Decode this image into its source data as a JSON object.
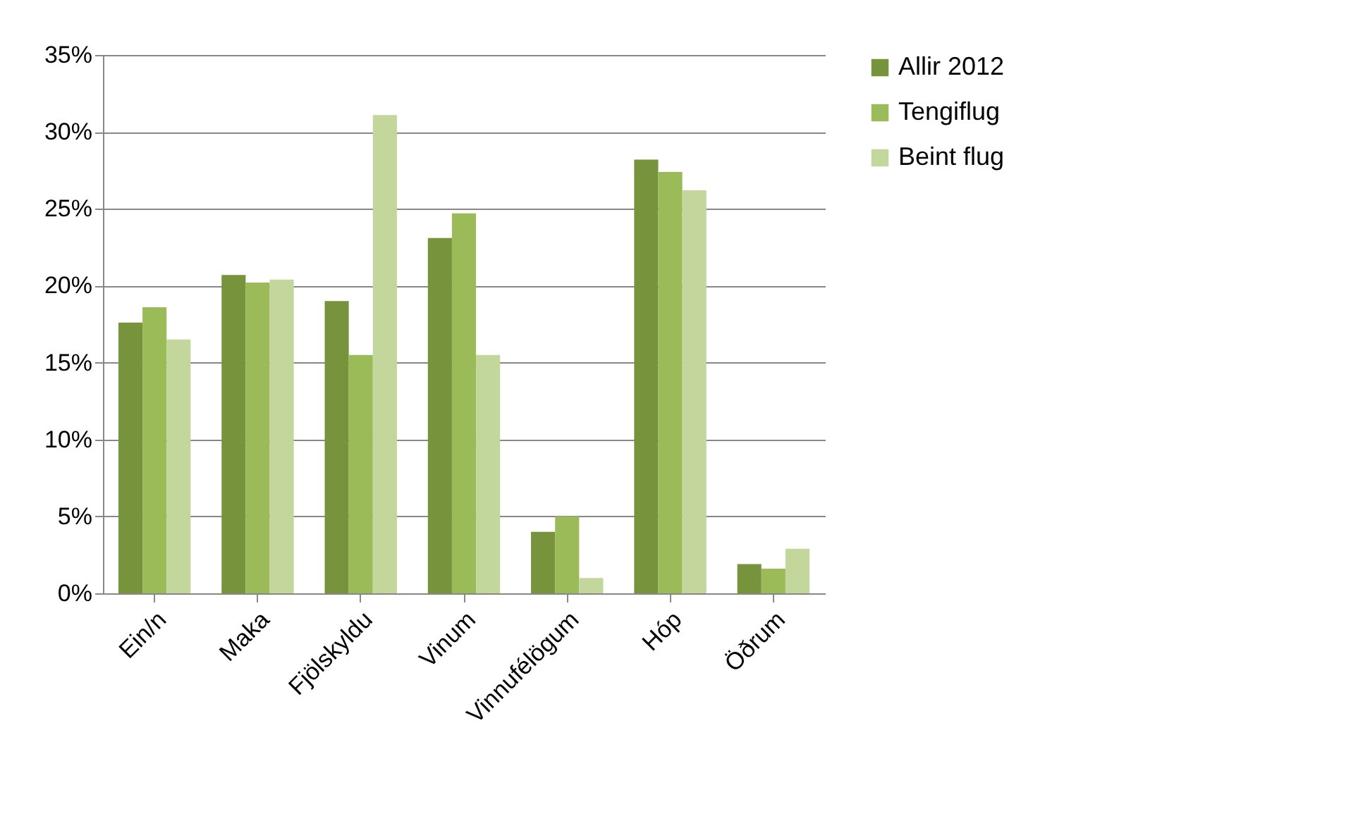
{
  "chart_data": {
    "type": "bar",
    "categories": [
      "Ein/n",
      "Maka",
      "Fjölskyldu",
      "Vinum",
      "Vinnufélögum",
      "Hóp",
      "Öðrum"
    ],
    "series": [
      {
        "name": "Allir 2012",
        "color": "#77933c",
        "values": [
          17.6,
          20.7,
          19.0,
          23.1,
          4.0,
          28.2,
          1.9
        ]
      },
      {
        "name": "Tengiflug",
        "color": "#9bbb59",
        "values": [
          18.6,
          20.2,
          15.5,
          24.7,
          5.0,
          27.4,
          1.6
        ]
      },
      {
        "name": "Beint flug",
        "color": "#c3d69b",
        "values": [
          16.5,
          20.4,
          31.1,
          15.5,
          1.0,
          26.2,
          2.9
        ]
      }
    ],
    "ylim": [
      0,
      35
    ],
    "yticks": [
      {
        "value": 0,
        "label": "0%"
      },
      {
        "value": 5,
        "label": "5%"
      },
      {
        "value": 10,
        "label": "10%"
      },
      {
        "value": 15,
        "label": "15%"
      },
      {
        "value": 20,
        "label": "20%"
      },
      {
        "value": 25,
        "label": "25%"
      },
      {
        "value": 30,
        "label": "30%"
      },
      {
        "value": 35,
        "label": "35%"
      }
    ],
    "grid": "y",
    "legend": "right"
  }
}
